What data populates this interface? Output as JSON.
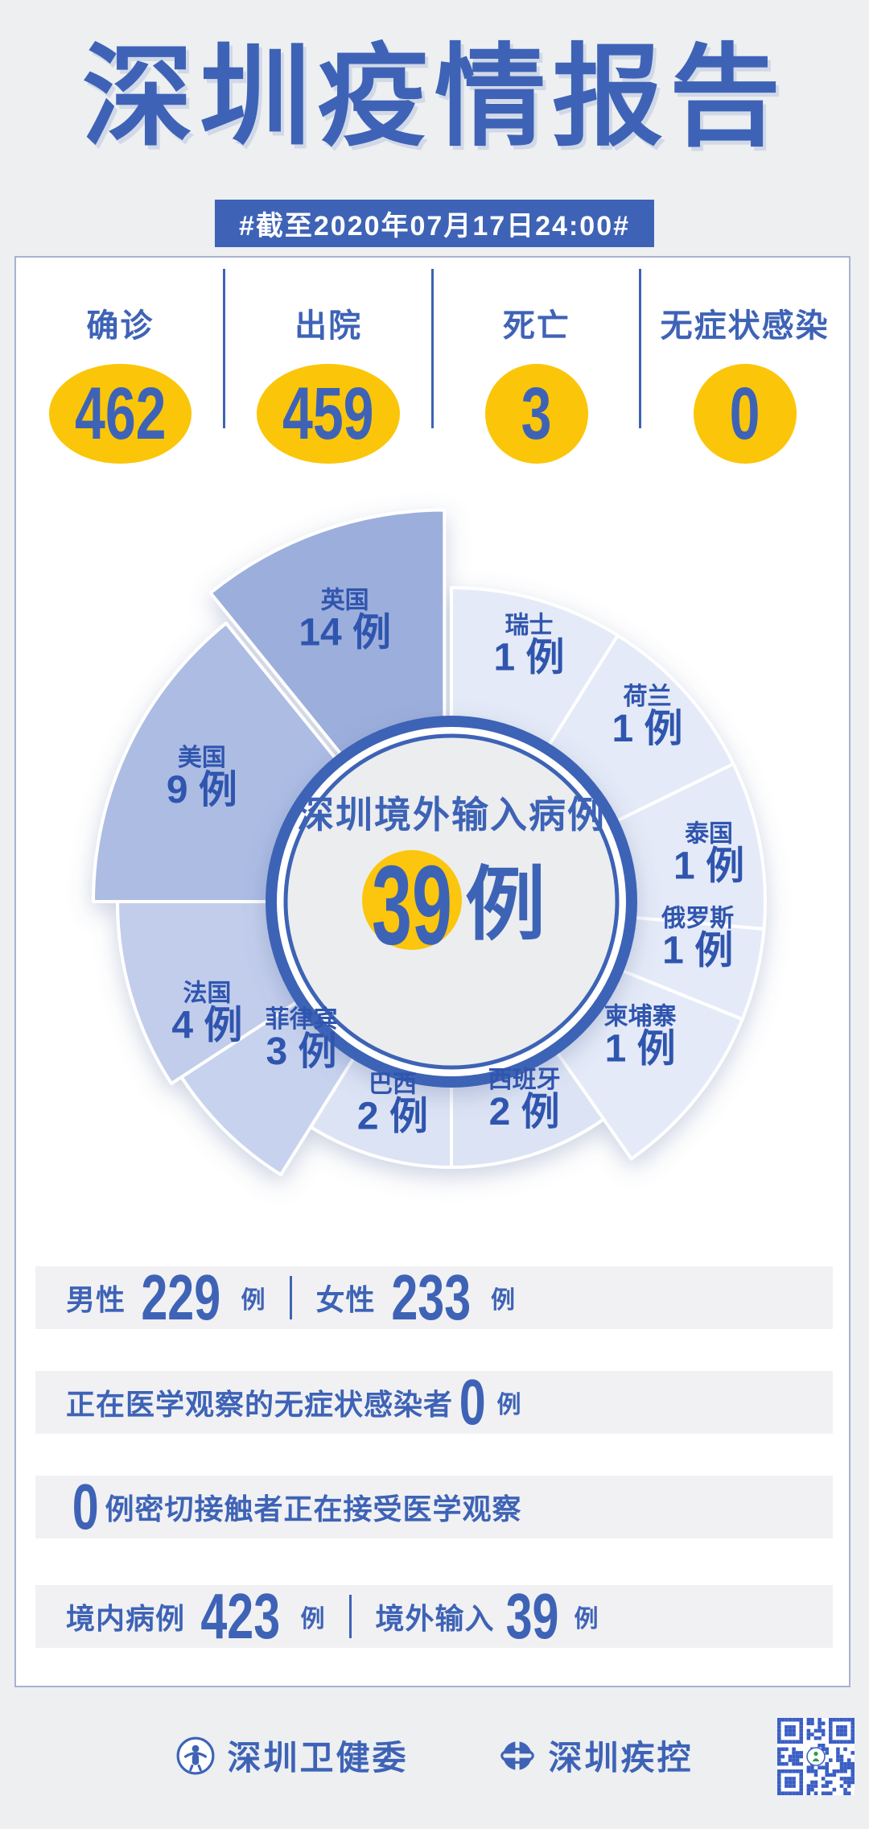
{
  "header": {
    "title": "深圳疫情报告",
    "subtitle": "#截至2020年07月17日24:00#"
  },
  "stats": {
    "items": [
      {
        "label": "确诊",
        "value": "462"
      },
      {
        "label": "出院",
        "value": "459"
      },
      {
        "label": "死亡",
        "value": "3"
      },
      {
        "label": "无症状感染",
        "value": "0"
      }
    ]
  },
  "chart_data": {
    "type": "pie",
    "variant": "nightingale-rose",
    "title": "深圳境外输入病例",
    "total_value": "39",
    "unit": "例",
    "start": "top",
    "direction": "clockwise",
    "series": [
      {
        "name": "瑞士",
        "value": 1
      },
      {
        "name": "荷兰",
        "value": 1
      },
      {
        "name": "泰国",
        "value": 1
      },
      {
        "name": "俄罗斯",
        "value": 1
      },
      {
        "name": "柬埔寨",
        "value": 1
      },
      {
        "name": "西班牙",
        "value": 2
      },
      {
        "name": "巴西",
        "value": 2
      },
      {
        "name": "菲律宾",
        "value": 3
      },
      {
        "name": "法国",
        "value": 4
      },
      {
        "name": "美国",
        "value": 9
      },
      {
        "name": "英国",
        "value": 14
      }
    ],
    "colors_by_value": {
      "1": "#E4EAF7",
      "2": "#DCE3F4",
      "3": "#C7D2EE",
      "4": "#C2CDEB",
      "9": "#ACBCE3",
      "14": "#9CAEDB"
    }
  },
  "summary_rows": [
    {
      "segments": [
        {
          "type": "label",
          "text": "男性"
        },
        {
          "type": "number",
          "text": "229"
        },
        {
          "type": "unit",
          "text": "例"
        },
        {
          "type": "divider"
        },
        {
          "type": "label",
          "text": "女性"
        },
        {
          "type": "number",
          "text": "233"
        },
        {
          "type": "unit",
          "text": "例"
        }
      ]
    },
    {
      "segments": [
        {
          "type": "label",
          "text": "正在医学观察的无症状感染者"
        },
        {
          "type": "number",
          "text": "0"
        },
        {
          "type": "unit",
          "text": "例"
        }
      ]
    },
    {
      "segments": [
        {
          "type": "number",
          "text": "0"
        },
        {
          "type": "label",
          "text": "例密切接触者正在接受医学观察"
        }
      ]
    },
    {
      "segments": [
        {
          "type": "label",
          "text": "境内病例"
        },
        {
          "type": "number",
          "text": "423"
        },
        {
          "type": "unit",
          "text": "例"
        },
        {
          "type": "divider"
        },
        {
          "type": "label",
          "text": "境外输入"
        },
        {
          "type": "number",
          "text": "39"
        },
        {
          "type": "unit",
          "text": "例"
        }
      ]
    }
  ],
  "footer": {
    "org1": "深圳卫健委",
    "org2": "深圳疾控"
  },
  "colors": {
    "blue": "#3E63B6",
    "yellow": "#FBC609",
    "slice_text": "#2F55AE",
    "band": "#F1F1F3",
    "card_border": "#A9B2D0",
    "inner_circle": "#ECEDEF",
    "qr_blue": "#3A5EC4",
    "qr_green": "#2E9E4F"
  }
}
